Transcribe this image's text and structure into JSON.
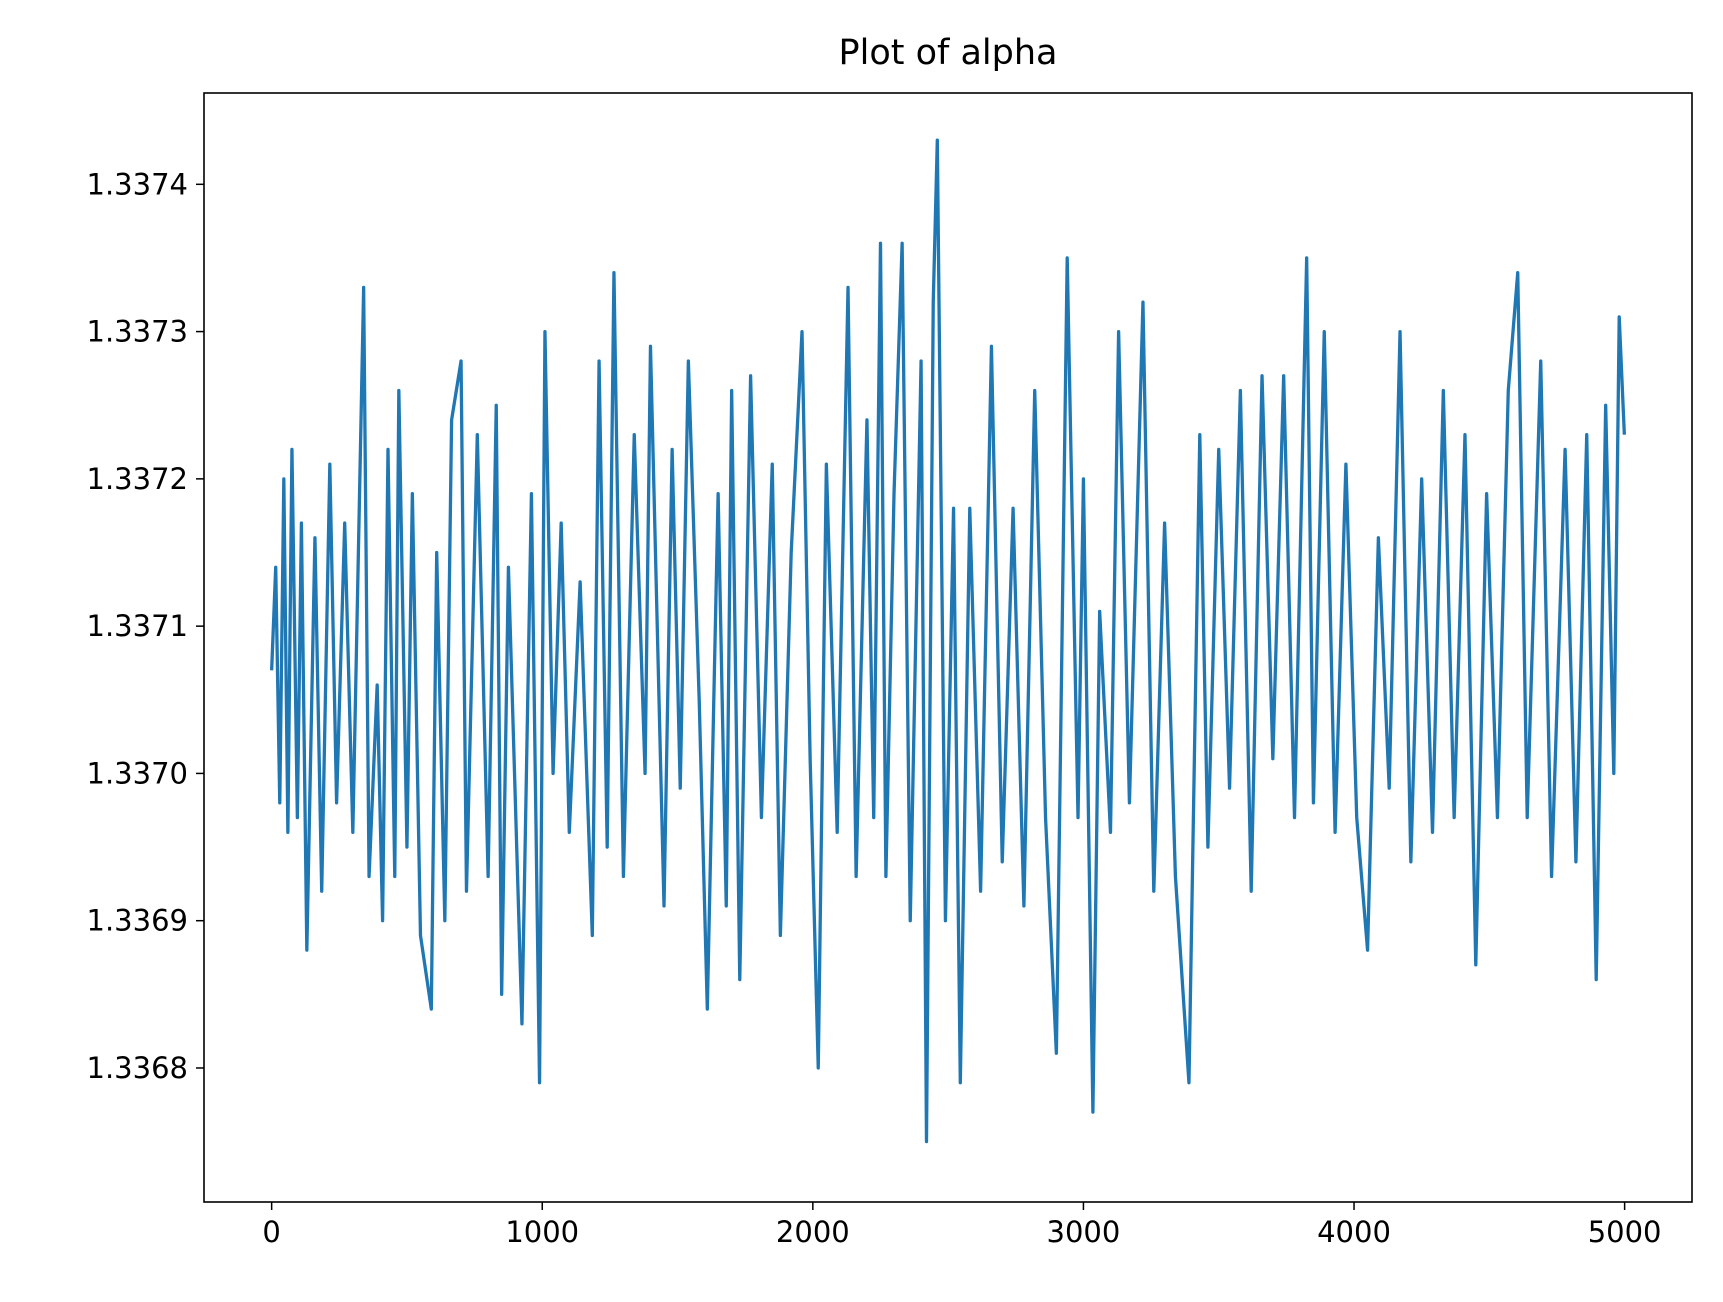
{
  "chart_data": {
    "type": "line",
    "title": "Plot of alpha",
    "x": [
      0,
      15,
      30,
      45,
      60,
      75,
      95,
      110,
      130,
      160,
      185,
      215,
      240,
      270,
      300,
      340,
      360,
      390,
      410,
      430,
      455,
      470,
      500,
      520,
      550,
      590,
      610,
      640,
      665,
      700,
      720,
      760,
      800,
      830,
      850,
      875,
      925,
      960,
      990,
      1010,
      1040,
      1070,
      1100,
      1140,
      1185,
      1210,
      1240,
      1265,
      1300,
      1340,
      1380,
      1400,
      1450,
      1480,
      1510,
      1540,
      1580,
      1610,
      1650,
      1680,
      1700,
      1730,
      1770,
      1810,
      1850,
      1880,
      1920,
      1960,
      1990,
      2020,
      2050,
      2090,
      2130,
      2160,
      2200,
      2225,
      2250,
      2270,
      2300,
      2330,
      2360,
      2400,
      2420,
      2445,
      2460,
      2490,
      2520,
      2545,
      2580,
      2620,
      2660,
      2700,
      2740,
      2780,
      2820,
      2860,
      2900,
      2940,
      2980,
      3000,
      3035,
      3060,
      3100,
      3130,
      3170,
      3220,
      3260,
      3300,
      3340,
      3390,
      3430,
      3460,
      3500,
      3540,
      3580,
      3620,
      3660,
      3700,
      3740,
      3780,
      3825,
      3850,
      3890,
      3930,
      3970,
      4010,
      4050,
      4090,
      4130,
      4170,
      4210,
      4250,
      4290,
      4330,
      4370,
      4410,
      4450,
      4490,
      4530,
      4570,
      4605,
      4640,
      4690,
      4730,
      4780,
      4820,
      4860,
      4895,
      4930,
      4960,
      4980,
      4999
    ],
    "series": [
      {
        "color": "#1f77b4",
        "values": [
          1.33707,
          1.33714,
          1.33698,
          1.3372,
          1.33696,
          1.33722,
          1.33697,
          1.33717,
          1.33688,
          1.33716,
          1.33692,
          1.33721,
          1.33698,
          1.33717,
          1.33696,
          1.33733,
          1.33693,
          1.33706,
          1.3369,
          1.33722,
          1.33693,
          1.33726,
          1.33695,
          1.33719,
          1.33689,
          1.33684,
          1.33715,
          1.3369,
          1.33724,
          1.33728,
          1.33692,
          1.33723,
          1.33693,
          1.33725,
          1.33685,
          1.33714,
          1.33683,
          1.33719,
          1.33679,
          1.3373,
          1.337,
          1.33717,
          1.33696,
          1.33713,
          1.33689,
          1.33728,
          1.33695,
          1.33734,
          1.33693,
          1.33723,
          1.337,
          1.33729,
          1.33691,
          1.33722,
          1.33699,
          1.33728,
          1.33705,
          1.33684,
          1.33719,
          1.33691,
          1.33726,
          1.33686,
          1.33727,
          1.33697,
          1.33721,
          1.33689,
          1.33715,
          1.3373,
          1.33701,
          1.3368,
          1.33721,
          1.33696,
          1.33733,
          1.33693,
          1.33724,
          1.33697,
          1.33736,
          1.33693,
          1.33719,
          1.33736,
          1.3369,
          1.33728,
          1.33675,
          1.33732,
          1.33743,
          1.3369,
          1.33718,
          1.33679,
          1.33718,
          1.33692,
          1.33729,
          1.33694,
          1.33718,
          1.33691,
          1.33726,
          1.33697,
          1.33681,
          1.33735,
          1.33697,
          1.3372,
          1.33677,
          1.33711,
          1.33696,
          1.3373,
          1.33698,
          1.33732,
          1.33692,
          1.33717,
          1.33693,
          1.33679,
          1.33723,
          1.33695,
          1.33722,
          1.33699,
          1.33726,
          1.33692,
          1.33727,
          1.33701,
          1.33727,
          1.33697,
          1.33735,
          1.33698,
          1.3373,
          1.33696,
          1.33721,
          1.33697,
          1.33688,
          1.33716,
          1.33699,
          1.3373,
          1.33694,
          1.3372,
          1.33696,
          1.33726,
          1.33697,
          1.33723,
          1.33687,
          1.33719,
          1.33697,
          1.33726,
          1.33734,
          1.33697,
          1.33728,
          1.33693,
          1.33722,
          1.33694,
          1.33723,
          1.33686,
          1.33725,
          1.337,
          1.33731,
          1.33723
        ]
      }
    ],
    "xlim": [
      -250,
      5249
    ],
    "xticks": [
      0,
      1000,
      2000,
      3000,
      4000,
      5000
    ],
    "ylim": [
      1.336709,
      1.337462
    ],
    "yticks": [
      1.3368,
      1.3369,
      {
        "value": 1.337,
        "label": "1.3370"
      },
      1.3371,
      1.3372,
      1.3373,
      1.3374
    ]
  }
}
